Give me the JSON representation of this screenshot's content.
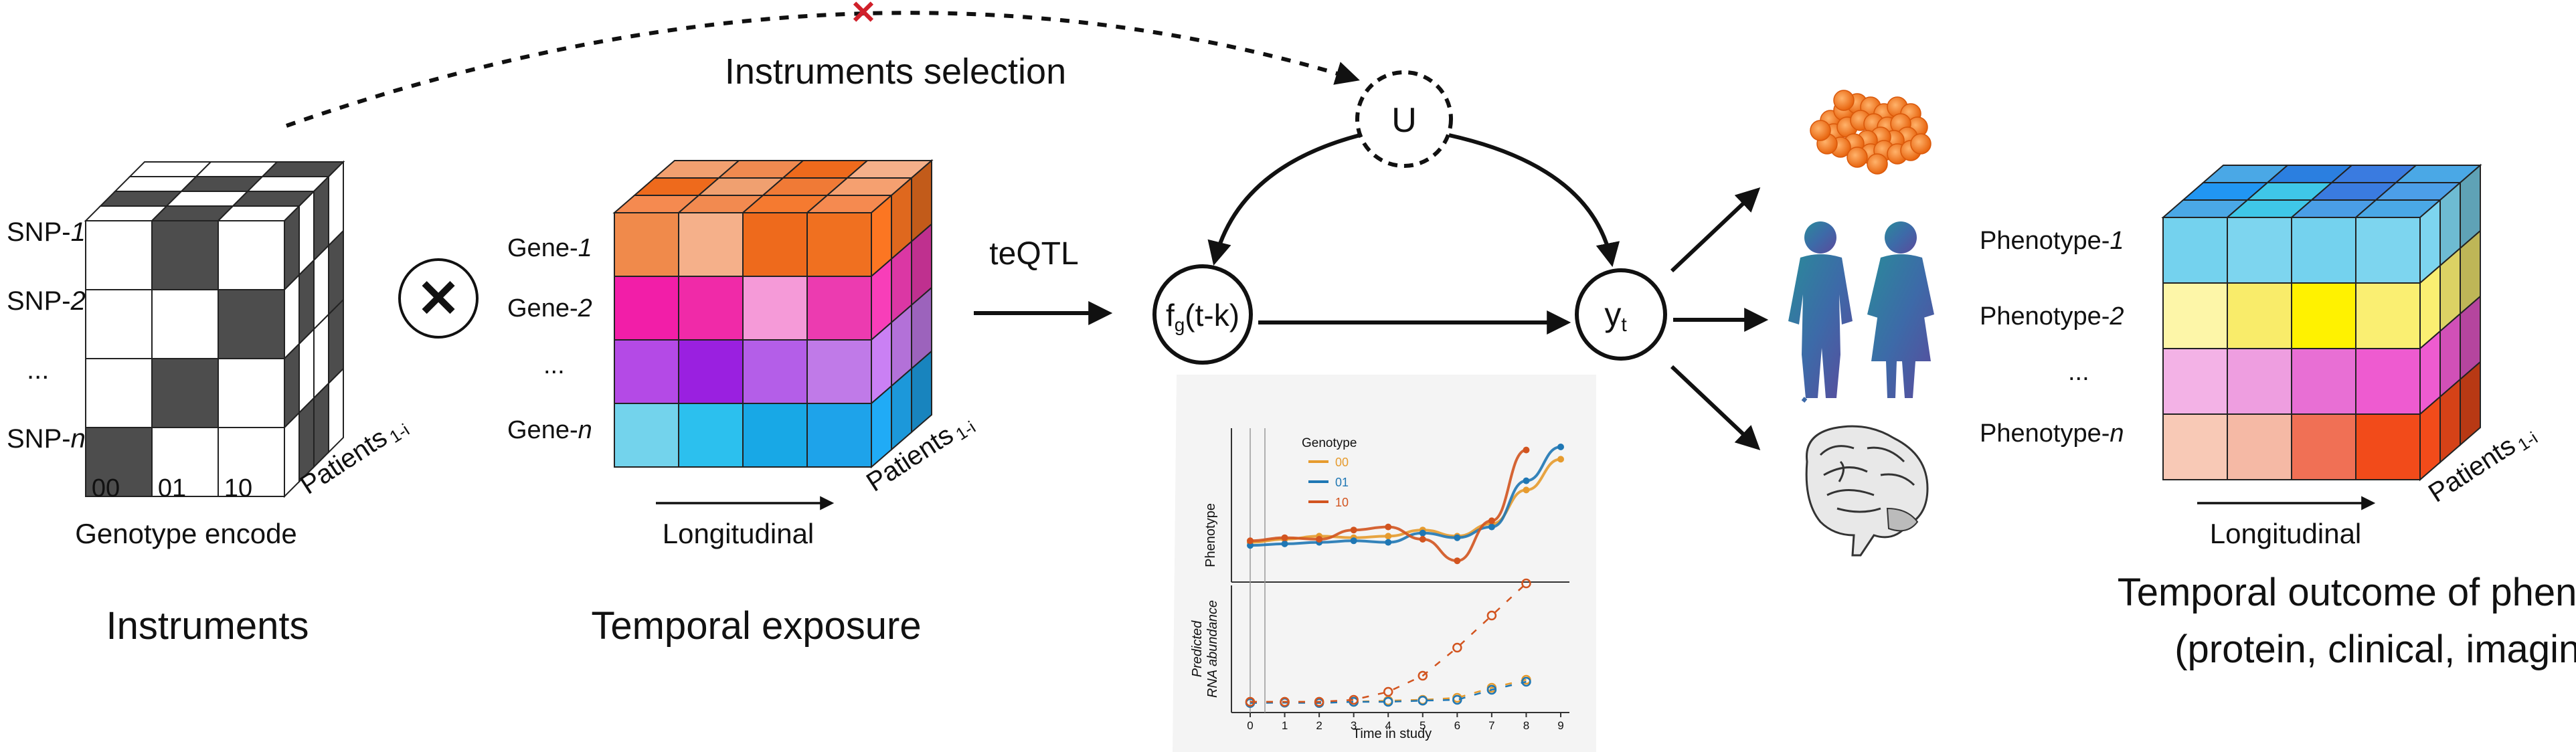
{
  "colors": {
    "genotype_dark": "#4d4d4d",
    "g00": "#e69b2e",
    "g01": "#1f77b4",
    "g10": "#d2541f"
  },
  "instruments": {
    "rows": [
      "SNP-",
      "SNP-",
      "...",
      "SNP-"
    ],
    "row_italic": [
      "1",
      "2",
      "",
      "n"
    ],
    "columns": [
      "00",
      "01",
      "10"
    ],
    "axis_label": "Genotype encode",
    "depth_label": "Patients",
    "depth_sub": "1-i",
    "title": "Instruments"
  },
  "operator_symbol": "✕",
  "selection": {
    "label": "Instruments selection",
    "cross_mark": "✕"
  },
  "exposure": {
    "rows": [
      "Gene-",
      "Gene-",
      "...",
      "Gene-"
    ],
    "row_italic": [
      "1",
      "2",
      "",
      "n"
    ],
    "axis_label": "Longitudinal",
    "depth_label": "Patients",
    "depth_sub": "1-i",
    "title": "Temporal exposure"
  },
  "teqtl_label": "teQTL",
  "nodes": {
    "confounder": "U",
    "exposure_fn_main": "f",
    "exposure_fn_sub": "g",
    "exposure_fn_arg": "(t-k)",
    "outcome_main": "y",
    "outcome_sub": "t"
  },
  "inset": {
    "legend_title": "Genotype",
    "legend_items": [
      "00",
      "01",
      "10"
    ],
    "top_ylabel": "Phenotype",
    "bottom_ylabel_line1": "Predicted",
    "bottom_ylabel_line2": "RNA abundance",
    "xlabel": "Time in study",
    "x_ticks": [
      "0",
      "1",
      "2",
      "3",
      "4",
      "5",
      "6",
      "7",
      "8",
      "9"
    ]
  },
  "outcome": {
    "rows": [
      "Phenotype-",
      "Phenotype-",
      "...",
      "Phenotype-"
    ],
    "row_italic": [
      "1",
      "2",
      "",
      "n"
    ],
    "axis_label": "Longitudinal",
    "depth_label": "Patients",
    "depth_sub": "1-i",
    "title_line1": "Temporal outcome of phenotype",
    "title_line2": "(protein, clinical, imaging)"
  },
  "chart_data": {
    "type": "scatter",
    "x_label": "Time in study",
    "x_range": [
      0,
      9
    ],
    "series": [
      {
        "name": "00",
        "color": "#e69b2e",
        "phenotype": [
          [
            0,
            0.9
          ],
          [
            1,
            1.0
          ],
          [
            2,
            1.1
          ],
          [
            3,
            1.05
          ],
          [
            4,
            1.1
          ],
          [
            5,
            1.3
          ],
          [
            6,
            1.1
          ],
          [
            7,
            1.5
          ],
          [
            8,
            2.6
          ],
          [
            9,
            3.6
          ]
        ],
        "rna": [
          [
            0,
            0.05
          ],
          [
            1,
            0.05
          ],
          [
            2,
            0.05
          ],
          [
            3,
            0.05
          ],
          [
            4,
            0.08
          ],
          [
            5,
            0.1
          ],
          [
            6,
            0.15
          ],
          [
            7,
            0.4
          ],
          [
            8,
            0.6
          ]
        ]
      },
      {
        "name": "01",
        "color": "#1f77b4",
        "phenotype": [
          [
            0,
            0.8
          ],
          [
            1,
            0.85
          ],
          [
            2,
            0.9
          ],
          [
            3,
            0.95
          ],
          [
            4,
            0.9
          ],
          [
            5,
            1.2
          ],
          [
            6,
            1.05
          ],
          [
            7,
            1.4
          ],
          [
            8,
            2.9
          ],
          [
            9,
            4.0
          ]
        ],
        "rna": [
          [
            0,
            0.02
          ],
          [
            1,
            0.03
          ],
          [
            2,
            0.02
          ],
          [
            3,
            0.05
          ],
          [
            4,
            0.05
          ],
          [
            5,
            0.08
          ],
          [
            6,
            0.1
          ],
          [
            7,
            0.35
          ],
          [
            8,
            0.55
          ]
        ]
      },
      {
        "name": "10",
        "color": "#d2541f",
        "phenotype": [
          [
            0,
            0.95
          ],
          [
            1,
            1.05
          ],
          [
            2,
            1.0
          ],
          [
            3,
            1.3
          ],
          [
            4,
            1.4
          ],
          [
            5,
            1.0
          ],
          [
            6,
            0.3
          ],
          [
            7,
            1.6
          ],
          [
            8,
            3.9
          ]
        ],
        "rna": [
          [
            0,
            0.05
          ],
          [
            1,
            0.05
          ],
          [
            2,
            0.05
          ],
          [
            3,
            0.1
          ],
          [
            4,
            0.3
          ],
          [
            5,
            0.7
          ],
          [
            6,
            1.4
          ],
          [
            7,
            2.2
          ],
          [
            8,
            3.0
          ]
        ]
      }
    ]
  }
}
